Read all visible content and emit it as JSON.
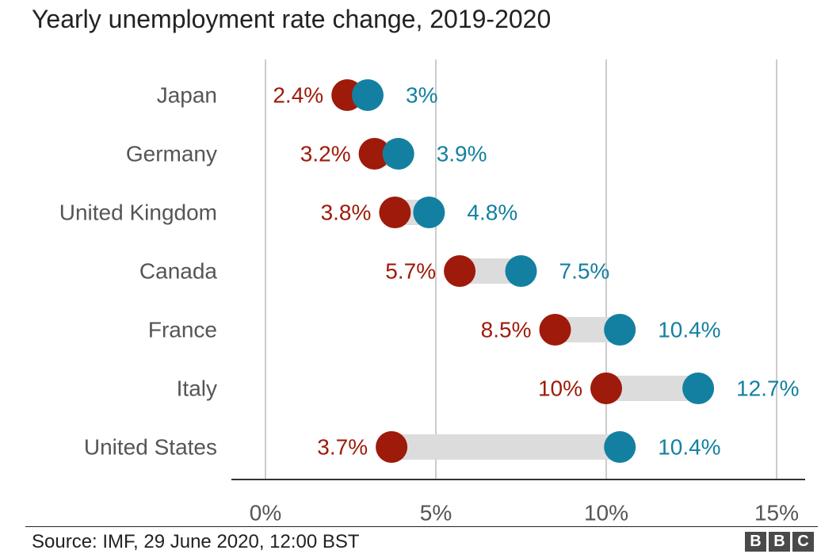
{
  "chart_data": {
    "type": "dumbbell",
    "title": "Yearly unemployment rate change, 2019-2020",
    "xlim": [
      0,
      15
    ],
    "x_ticks": [
      0,
      5,
      10,
      15
    ],
    "x_tick_labels": [
      "0%",
      "5%",
      "10%",
      "15%"
    ],
    "grid": true,
    "categories": [
      "Japan",
      "Germany",
      "United Kingdom",
      "Canada",
      "France",
      "Italy",
      "United States"
    ],
    "series": [
      {
        "key": "start",
        "color": "#9e1a0a",
        "values": [
          2.4,
          3.2,
          3.8,
          5.7,
          8.5,
          10,
          3.7
        ],
        "labels": [
          "2.4%",
          "3.2%",
          "3.8%",
          "5.7%",
          "8.5%",
          "10%",
          "3.7%"
        ]
      },
      {
        "key": "end",
        "color": "#1380a1",
        "values": [
          3,
          3.9,
          4.8,
          7.5,
          10.4,
          12.7,
          10.4
        ],
        "labels": [
          "3%",
          "3.9%",
          "4.8%",
          "7.5%",
          "10.4%",
          "12.7%",
          "10.4%"
        ]
      }
    ],
    "connector_color": "#dcdcdc"
  },
  "footer": {
    "source": "Source: IMF, 29 June 2020, 12:00 BST",
    "logo_letters": [
      "B",
      "B",
      "C"
    ]
  }
}
